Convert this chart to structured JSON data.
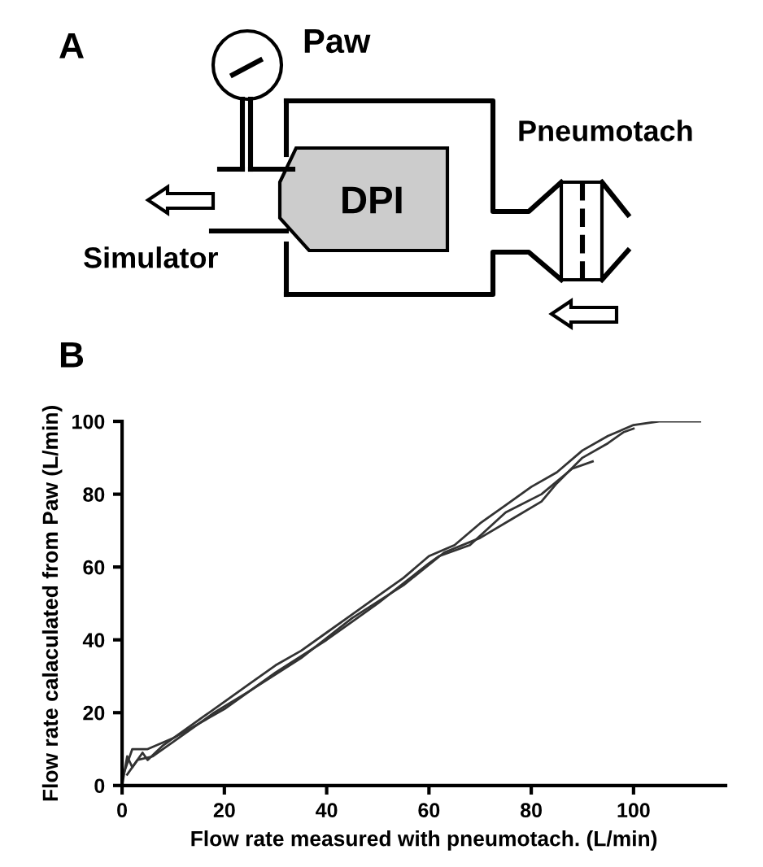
{
  "chart_data": {
    "type": "line",
    "xlabel": "Flow rate measured with pneumotach. (L/min)",
    "ylabel": "Flow rate calaculated from Paw (L/min)",
    "annotations": [
      "A",
      "Paw",
      "Pneumotach",
      "DPI",
      "Simulator",
      "B"
    ],
    "xlim": [
      0,
      118
    ],
    "ylim": [
      0,
      100
    ],
    "xticks": [
      0,
      20,
      40,
      60,
      80,
      100
    ],
    "yticks": [
      0,
      20,
      40,
      60,
      80,
      100
    ],
    "grid": false,
    "legend": false,
    "marker": "none",
    "line_style": "solid",
    "series": [
      {
        "color": "#333333",
        "x": [
          0,
          1,
          2,
          4,
          5,
          8,
          12,
          16,
          20,
          25,
          30,
          35,
          40,
          45,
          50,
          55,
          60,
          65,
          70,
          75,
          80,
          85,
          90,
          95,
          100,
          105,
          113
        ],
        "values": [
          0,
          8,
          5,
          9,
          7,
          11,
          15,
          19,
          23,
          28,
          33,
          37,
          42,
          47,
          52,
          57,
          63,
          66,
          72,
          77,
          82,
          86,
          92,
          96,
          99,
          100,
          100
        ]
      },
      {
        "color": "#333333",
        "x": [
          0,
          2,
          5,
          10,
          15,
          20,
          30,
          40,
          50,
          60,
          62,
          68,
          75,
          82,
          88,
          92
        ],
        "values": [
          2,
          10,
          10,
          13,
          17,
          21,
          31,
          40,
          50,
          61,
          63,
          66,
          75,
          80,
          87,
          89
        ]
      },
      {
        "color": "#333333",
        "x": [
          1,
          3,
          6,
          10,
          18,
          25,
          35,
          45,
          55,
          63,
          70,
          76,
          82,
          85,
          90,
          95,
          98,
          100
        ],
        "values": [
          3,
          7,
          8,
          12,
          20,
          26,
          35,
          46,
          55,
          64,
          68,
          73,
          78,
          83,
          90,
          94,
          97,
          98
        ]
      }
    ]
  }
}
